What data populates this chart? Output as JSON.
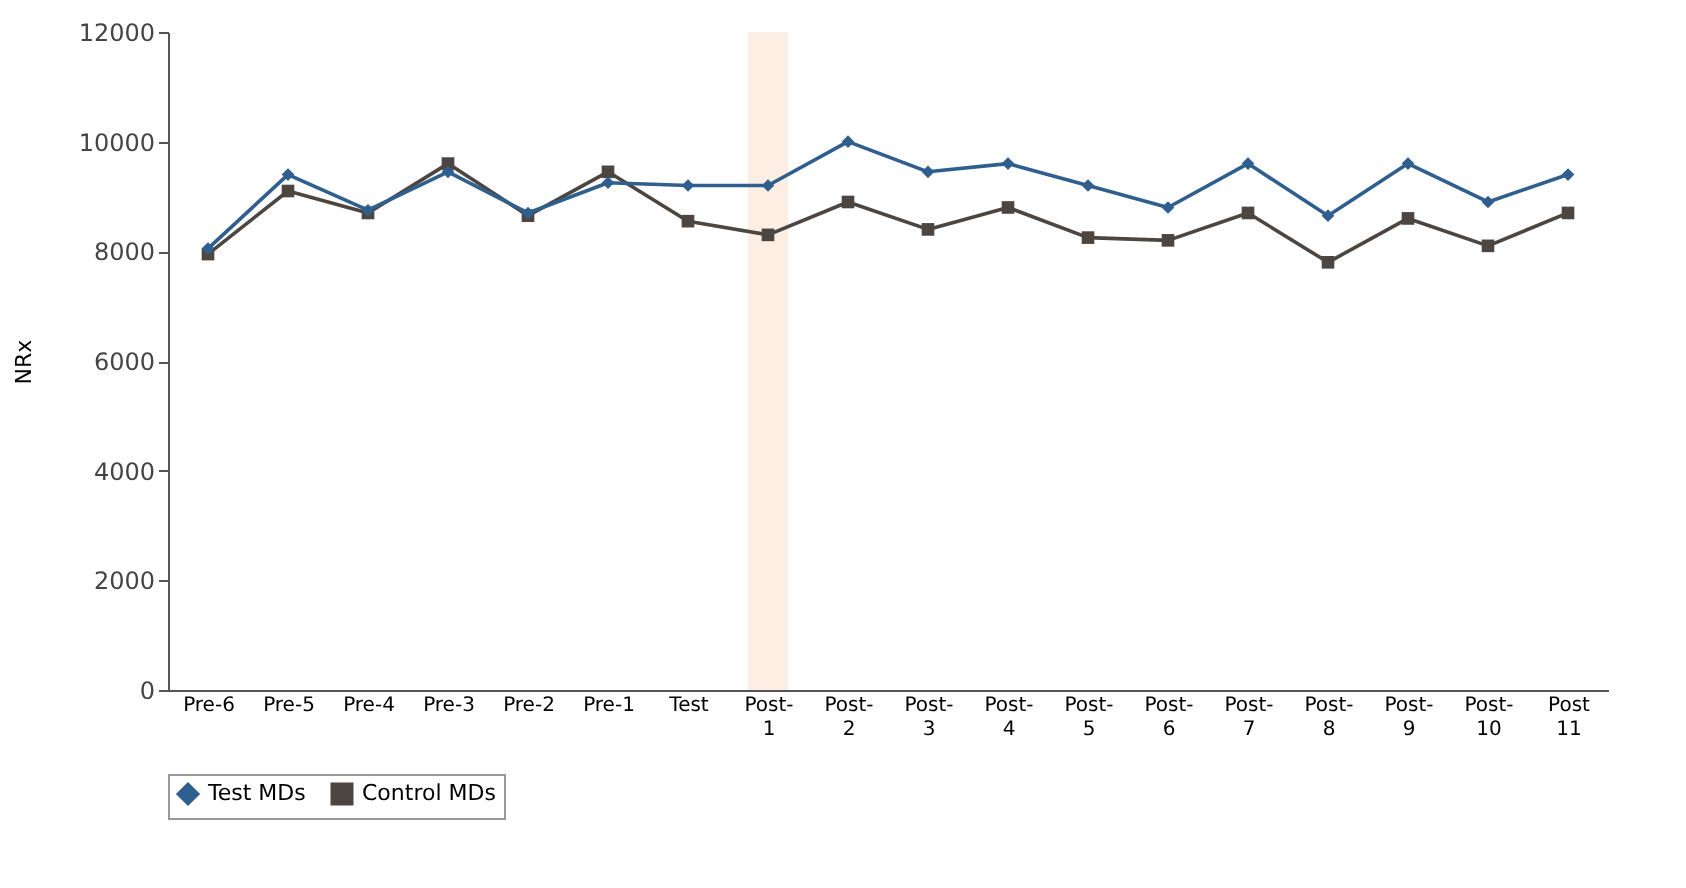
{
  "chart_data": {
    "type": "line",
    "ylabel": "NRx",
    "categories": [
      "Pre-6",
      "Pre-5",
      "Pre-4",
      "Pre-3",
      "Pre-2",
      "Pre-1",
      "Test",
      "Post- 1",
      "Post- 2",
      "Post- 3",
      "Post- 4",
      "Post- 5",
      "Post- 6",
      "Post- 7",
      "Post- 8",
      "Post- 9",
      "Post- 10",
      "Post 11"
    ],
    "series": [
      {
        "name": "Test MDs",
        "color": "#2f5f8f",
        "marker": "diamond",
        "values": [
          8050,
          9400,
          8750,
          9450,
          8700,
          9250,
          9200,
          9200,
          10000,
          9450,
          9600,
          9200,
          8800,
          9600,
          8650,
          9600,
          8900,
          9400
        ]
      },
      {
        "name": "Control MDs",
        "color": "#4d4540",
        "marker": "square",
        "values": [
          7950,
          9100,
          8700,
          9600,
          8650,
          9450,
          8550,
          8300,
          8900,
          8400,
          8800,
          8250,
          8200,
          8700,
          7800,
          8600,
          8100,
          8700
        ]
      }
    ],
    "ylim": [
      0,
      12000
    ],
    "yticks": [
      0,
      2000,
      4000,
      6000,
      8000,
      10000,
      12000
    ],
    "bands": [
      {
        "axis": "x",
        "from": "Post- 1",
        "to": "Post- 1",
        "color": "#fdeee3"
      }
    ],
    "legend": "bottom",
    "grid": false
  }
}
